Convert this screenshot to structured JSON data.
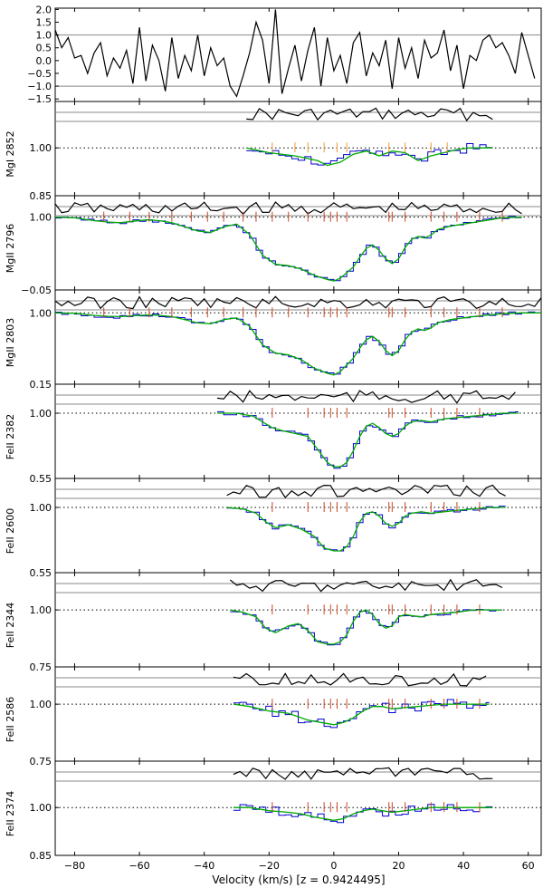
{
  "chart_data": {
    "type": "line",
    "xlabel": "Velocity (km/s) [z = 0.9424495]",
    "xlim": [
      -86,
      64
    ],
    "xticks": [
      -80,
      -60,
      -40,
      -20,
      0,
      20,
      40,
      60
    ],
    "xtick_labels": [
      "−80",
      "−60",
      "−40",
      "−20",
      "0",
      "20",
      "40",
      "60"
    ],
    "colors": {
      "data": "#0000cc",
      "model": "#00aa00",
      "residual": "#000000",
      "tick_mark": "#cc4422",
      "tick_mark_light": "#ee9933",
      "frame": "#000000",
      "ref_line": "#888888"
    },
    "residual_panel": {
      "ylim": [
        -1.6,
        2.05
      ],
      "yticks": [
        2.0,
        1.5,
        1.0,
        0.5,
        0.0,
        -0.5,
        -1.0,
        -1.5
      ],
      "ytick_labels": [
        "2.0",
        "1.5",
        "1.0",
        "0.5",
        "0.0",
        "−0.5",
        "−1.0",
        "−1.5"
      ],
      "hlines": [
        1.0,
        -1.0
      ],
      "x": [
        -86,
        -84,
        -82,
        -80,
        -78,
        -76,
        -74,
        -72,
        -70,
        -68,
        -66,
        -64,
        -62,
        -60,
        -58,
        -56,
        -54,
        -52,
        -50,
        -48,
        -46,
        -44,
        -42,
        -40,
        -38,
        -36,
        -34,
        -32,
        -30,
        -28,
        -26,
        -24,
        -22,
        -20,
        -18,
        -16,
        -14,
        -12,
        -10,
        -8,
        -6,
        -4,
        -2,
        0,
        2,
        4,
        6,
        8,
        10,
        12,
        14,
        16,
        18,
        20,
        22,
        24,
        26,
        28,
        30,
        32,
        34,
        36,
        38,
        40,
        42,
        44,
        46,
        48,
        50,
        52,
        54,
        56,
        58,
        60,
        62
      ],
      "y": [
        1.2,
        0.5,
        0.9,
        0.1,
        0.2,
        -0.5,
        0.3,
        0.7,
        -0.6,
        0.1,
        -0.3,
        0.4,
        -0.9,
        1.3,
        -0.8,
        0.6,
        0.0,
        -1.2,
        0.9,
        -0.7,
        0.2,
        -0.4,
        1.0,
        -0.6,
        0.5,
        -0.2,
        0.1,
        -1.0,
        -1.4,
        -0.6,
        0.3,
        1.5,
        0.8,
        -0.9,
        2.0,
        -1.3,
        -0.3,
        0.6,
        -0.8,
        0.4,
        1.3,
        -1.0,
        0.9,
        -0.4,
        0.2,
        -0.9,
        0.7,
        1.1,
        -0.6,
        0.3,
        -0.2,
        0.8,
        -1.1,
        0.9,
        -0.3,
        0.5,
        -0.7,
        0.8,
        0.1,
        0.3,
        1.2,
        -0.4,
        0.6,
        -1.1,
        0.2,
        0.0,
        0.8,
        1.0,
        0.5,
        0.7,
        0.2,
        -0.5,
        1.1,
        0.2,
        -0.7
      ]
    },
    "panels": [
      {
        "label": "MgI 2852",
        "ylim": [
          0.85,
          1.1
        ],
        "yticks": [
          1.0,
          0.85
        ],
        "ytick_labels": [
          "1.00",
          "0.85"
        ],
        "xrange": [
          -27,
          49
        ],
        "model_x": [
          -27,
          -20,
          -12,
          -5,
          -2,
          2,
          6,
          10,
          14,
          18,
          22,
          26,
          30,
          34,
          38,
          42,
          47,
          49
        ],
        "model_y": [
          1.0,
          0.985,
          0.975,
          0.96,
          0.945,
          0.955,
          0.98,
          0.99,
          0.975,
          0.99,
          0.985,
          0.96,
          0.975,
          0.985,
          0.995,
          1.0,
          1.0,
          1.0
        ],
        "comp_v": [
          -19,
          -12,
          -8,
          -3,
          1,
          4,
          17,
          22,
          30,
          35
        ],
        "comp_color": "light"
      },
      {
        "label": "MgII 2796",
        "ylim": [
          -0.05,
          1.1
        ],
        "yticks": [
          1.0,
          -0.05
        ],
        "ytick_labels": [
          "1.00",
          "−0.05"
        ],
        "xrange": [
          -86,
          58
        ],
        "model_x": [
          -86,
          -80,
          -74,
          -70,
          -66,
          -62,
          -58,
          -54,
          -50,
          -46,
          -42,
          -38,
          -34,
          -30,
          -26,
          -22,
          -18,
          -14,
          -10,
          -6,
          -2,
          0,
          2,
          4,
          6,
          8,
          10,
          12,
          14,
          16,
          18,
          20,
          22,
          24,
          26,
          28,
          30,
          32,
          36,
          40,
          44,
          48,
          52,
          58
        ],
        "model_y": [
          1.0,
          0.99,
          0.95,
          0.93,
          0.92,
          0.94,
          0.96,
          0.95,
          0.92,
          0.86,
          0.8,
          0.78,
          0.86,
          0.9,
          0.75,
          0.45,
          0.32,
          0.3,
          0.25,
          0.16,
          0.1,
          0.08,
          0.12,
          0.2,
          0.28,
          0.42,
          0.55,
          0.6,
          0.52,
          0.4,
          0.33,
          0.4,
          0.56,
          0.68,
          0.72,
          0.7,
          0.74,
          0.82,
          0.87,
          0.9,
          0.93,
          0.96,
          0.99,
          1.0
        ],
        "comp_v": [
          -71,
          -63,
          -57,
          -50,
          -44,
          -39,
          -34,
          -28,
          -24,
          -19,
          -14,
          -8,
          -3,
          -1,
          1,
          4,
          17,
          18,
          22,
          30,
          34,
          38,
          45,
          52
        ],
        "comp_color": "dark"
      },
      {
        "label": "MgII 2803",
        "ylim": [
          0.15,
          1.1
        ],
        "yticks": [
          1.0,
          0.15
        ],
        "ytick_labels": [
          "1.00",
          "0.15"
        ],
        "xrange": [
          -86,
          64
        ],
        "model_x": [
          -86,
          -80,
          -74,
          -70,
          -66,
          -62,
          -58,
          -54,
          -50,
          -46,
          -42,
          -38,
          -34,
          -30,
          -26,
          -22,
          -18,
          -14,
          -10,
          -6,
          -2,
          0,
          2,
          4,
          6,
          8,
          10,
          12,
          14,
          16,
          18,
          20,
          22,
          24,
          26,
          28,
          30,
          32,
          36,
          40,
          44,
          48,
          52,
          58,
          64
        ],
        "model_y": [
          1.0,
          0.995,
          0.97,
          0.96,
          0.955,
          0.965,
          0.975,
          0.97,
          0.955,
          0.92,
          0.88,
          0.87,
          0.92,
          0.94,
          0.84,
          0.62,
          0.52,
          0.5,
          0.44,
          0.34,
          0.28,
          0.26,
          0.3,
          0.38,
          0.46,
          0.58,
          0.68,
          0.72,
          0.66,
          0.55,
          0.49,
          0.55,
          0.68,
          0.77,
          0.81,
          0.79,
          0.82,
          0.88,
          0.92,
          0.94,
          0.96,
          0.975,
          0.99,
          1.0,
          1.0
        ],
        "comp_v": [
          -71,
          -63,
          -57,
          -50,
          -44,
          -39,
          -34,
          -28,
          -24,
          -19,
          -14,
          -8,
          -3,
          -1,
          1,
          4,
          17,
          18,
          22,
          30,
          34,
          38,
          45,
          52
        ],
        "comp_color": "dark"
      },
      {
        "label": "FeII 2382",
        "ylim": [
          0.55,
          1.1
        ],
        "yticks": [
          1.0,
          0.55
        ],
        "ytick_labels": [
          "1.00",
          "0.55"
        ],
        "xrange": [
          -36,
          57
        ],
        "model_x": [
          -36,
          -30,
          -25,
          -22,
          -19,
          -16,
          -12,
          -8,
          -5,
          -2,
          0,
          2,
          4,
          6,
          8,
          10,
          12,
          14,
          16,
          18,
          20,
          22,
          24,
          27,
          30,
          34,
          38,
          43,
          48,
          52,
          57
        ],
        "model_y": [
          1.0,
          1.0,
          0.98,
          0.94,
          0.9,
          0.88,
          0.86,
          0.84,
          0.75,
          0.66,
          0.63,
          0.63,
          0.66,
          0.74,
          0.84,
          0.91,
          0.93,
          0.9,
          0.86,
          0.84,
          0.86,
          0.91,
          0.94,
          0.95,
          0.94,
          0.96,
          0.97,
          0.98,
          0.99,
          1.0,
          1.0
        ],
        "comp_v": [
          -19,
          -8,
          -3,
          -1,
          1,
          4,
          17,
          18,
          22,
          30,
          34,
          38,
          45
        ],
        "comp_color": "dark"
      },
      {
        "label": "FeII 2600",
        "ylim": [
          0.55,
          1.1
        ],
        "yticks": [
          1.0,
          0.55
        ],
        "ytick_labels": [
          "1.00",
          "0.55"
        ],
        "xrange": [
          -33,
          53
        ],
        "model_x": [
          -33,
          -28,
          -24,
          -21,
          -18,
          -14,
          -10,
          -6,
          -3,
          0,
          2,
          4,
          6,
          8,
          10,
          12,
          14,
          16,
          18,
          20,
          22,
          24,
          27,
          30,
          34,
          38,
          43,
          48,
          53
        ],
        "model_y": [
          1.0,
          0.99,
          0.96,
          0.9,
          0.86,
          0.88,
          0.85,
          0.8,
          0.72,
          0.7,
          0.7,
          0.73,
          0.8,
          0.9,
          0.96,
          0.97,
          0.94,
          0.89,
          0.87,
          0.89,
          0.94,
          0.96,
          0.97,
          0.96,
          0.97,
          0.98,
          0.99,
          1.0,
          1.0
        ],
        "comp_v": [
          -19,
          -8,
          -3,
          -1,
          1,
          4,
          17,
          18,
          22,
          30,
          34,
          38,
          45
        ],
        "comp_color": "dark"
      },
      {
        "label": "FeII 2344",
        "ylim": [
          0.75,
          1.1
        ],
        "yticks": [
          1.0,
          0.75
        ],
        "ytick_labels": [
          "1.00",
          "0.75"
        ],
        "xrange": [
          -32,
          52
        ],
        "model_x": [
          -32,
          -28,
          -24,
          -21,
          -18,
          -14,
          -11,
          -8,
          -5,
          -2,
          0,
          2,
          4,
          6,
          8,
          10,
          12,
          14,
          16,
          18,
          20,
          22,
          24,
          27,
          30,
          34,
          38,
          43,
          48,
          52
        ],
        "model_y": [
          1.0,
          0.99,
          0.97,
          0.92,
          0.9,
          0.93,
          0.94,
          0.91,
          0.86,
          0.85,
          0.85,
          0.86,
          0.89,
          0.95,
          0.99,
          1.0,
          0.98,
          0.94,
          0.92,
          0.93,
          0.97,
          0.98,
          0.975,
          0.97,
          0.98,
          0.985,
          0.99,
          1.0,
          1.0,
          1.0
        ],
        "comp_v": [
          -19,
          -8,
          -3,
          -1,
          1,
          4,
          17,
          18,
          22,
          30,
          34,
          38,
          45
        ],
        "comp_color": "dark"
      },
      {
        "label": "FeII 2586",
        "ylim": [
          0.75,
          1.1
        ],
        "yticks": [
          1.0,
          0.75
        ],
        "ytick_labels": [
          "1.00",
          "0.75"
        ],
        "xrange": [
          -31,
          48
        ],
        "model_x": [
          -31,
          -26,
          -20,
          -14,
          -8,
          -4,
          0,
          3,
          6,
          9,
          12,
          15,
          18,
          22,
          26,
          30,
          34,
          38,
          43,
          48
        ],
        "model_y": [
          1.0,
          0.99,
          0.97,
          0.96,
          0.93,
          0.92,
          0.91,
          0.92,
          0.94,
          0.97,
          0.99,
          0.99,
          0.98,
          0.985,
          0.99,
          0.995,
          1.0,
          1.0,
          1.0,
          1.0
        ],
        "comp_v": [
          -19,
          -8,
          -3,
          -1,
          1,
          4,
          17,
          18,
          22,
          30,
          34,
          38,
          45
        ],
        "comp_color": "dark"
      },
      {
        "label": "FeII 2374",
        "ylim": [
          0.85,
          1.1
        ],
        "yticks": [
          1.0,
          0.85
        ],
        "ytick_labels": [
          "1.00",
          "0.85"
        ],
        "xrange": [
          -31,
          49
        ],
        "model_x": [
          -31,
          -26,
          -20,
          -14,
          -10,
          -6,
          -3,
          0,
          3,
          6,
          9,
          12,
          15,
          18,
          22,
          26,
          30,
          34,
          38,
          43,
          49
        ],
        "model_y": [
          1.0,
          1.0,
          0.99,
          0.985,
          0.98,
          0.97,
          0.965,
          0.96,
          0.965,
          0.98,
          0.99,
          0.995,
          0.99,
          0.985,
          0.99,
          0.995,
          1.0,
          1.0,
          1.0,
          1.0,
          1.0
        ],
        "comp_v": [
          -19,
          -8,
          -3,
          -1,
          1,
          4,
          17,
          18,
          22,
          30,
          34,
          38,
          45
        ],
        "comp_color": "dark"
      }
    ]
  }
}
